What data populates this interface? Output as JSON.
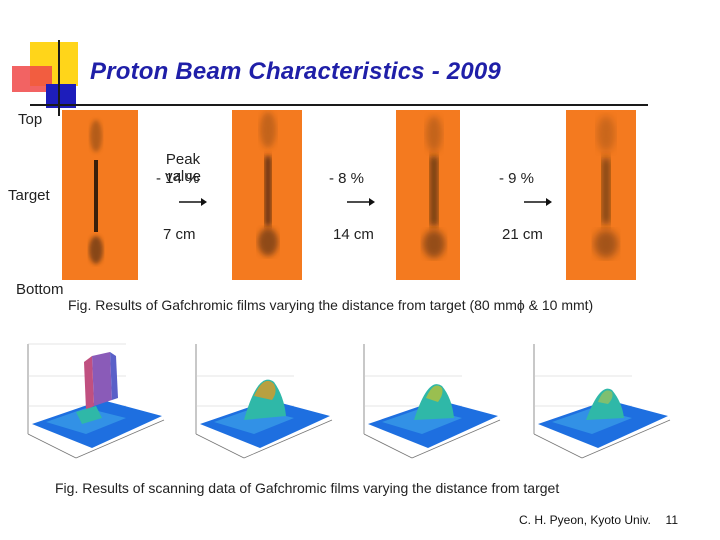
{
  "slide": {
    "title": "Proton Beam Characteristics - 2009",
    "labels": {
      "top": "Top",
      "target": "Target",
      "bottom": "Bottom"
    },
    "films": [
      {
        "peak_label": "Peak value",
        "peak_value": "- 14 %",
        "distance": "7 cm"
      },
      {
        "peak_value": "- 8 %",
        "distance": "14 cm"
      },
      {
        "peak_value": "- 9 %",
        "distance": "21 cm"
      }
    ],
    "caption1": "Fig. Results of Gafchromic films varying the distance from target (80 mmϕ & 10 mmt)",
    "caption2": "Fig. Results of scanning data of Gafchromic films varying the distance from target",
    "footer": {
      "author": "C. H. Pyeon, Kyoto Univ.",
      "page": "11"
    },
    "colors": {
      "title": "#1f1fa8",
      "film": "#f47a1f",
      "surface": "#1e6fe0"
    }
  }
}
